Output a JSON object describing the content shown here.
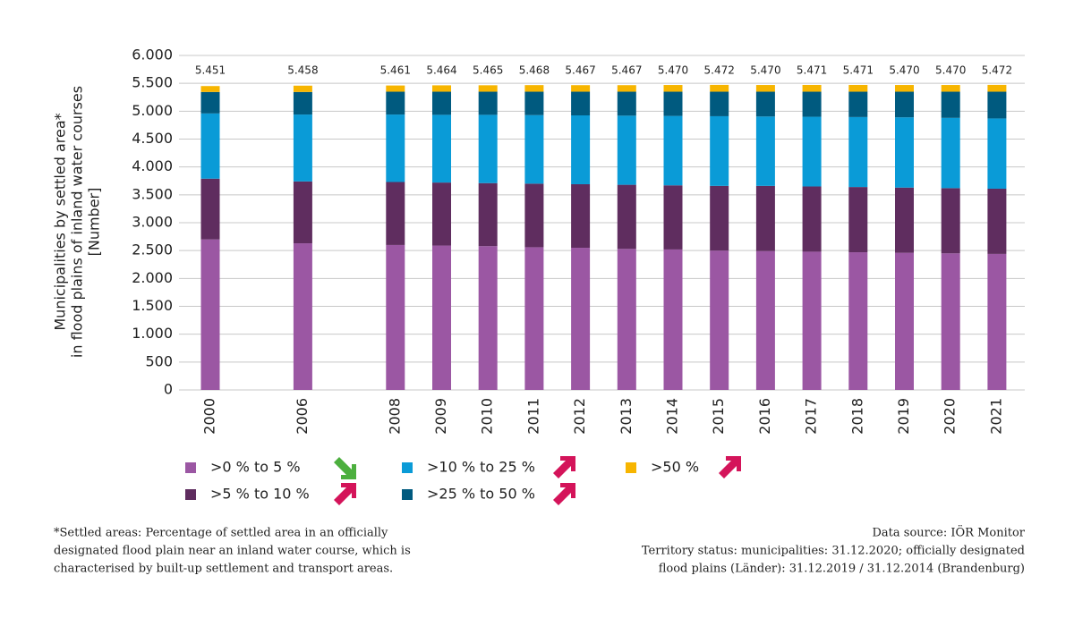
{
  "chart_data": {
    "type": "stacked_bar",
    "ylabel": [
      "Municipalities by settled area*",
      "in flood plains of inland water courses",
      "[Number]"
    ],
    "categories": [
      "2000",
      null,
      "2006",
      null,
      "2008",
      "2009",
      "2010",
      "2011",
      "2012",
      "2013",
      "2014",
      "2015",
      "2016",
      "2017",
      "2018",
      "2019",
      "2020",
      "2021"
    ],
    "series": [
      {
        "name": ">0 % to 5 %",
        "color": "#9b57a3",
        "trend": "down",
        "values": [
          2700,
          null,
          2630,
          null,
          2600,
          2590,
          2580,
          2560,
          2550,
          2530,
          2520,
          2500,
          2490,
          2480,
          2470,
          2460,
          2450,
          2440
        ]
      },
      {
        "name": ">5 % to 10 %",
        "color": "#5f2d5f",
        "trend": "up",
        "values": [
          1090,
          null,
          1110,
          null,
          1130,
          1130,
          1130,
          1140,
          1140,
          1150,
          1150,
          1160,
          1170,
          1170,
          1170,
          1170,
          1170,
          1170
        ]
      },
      {
        "name": ">10 % to 25 %",
        "color": "#0a9bd7",
        "trend": "up",
        "values": [
          1170,
          null,
          1200,
          null,
          1210,
          1215,
          1225,
          1230,
          1235,
          1240,
          1245,
          1250,
          1245,
          1250,
          1255,
          1260,
          1260,
          1260
        ]
      },
      {
        "name": ">25 % to 50 %",
        "color": "#005a7f",
        "trend": "up",
        "values": [
          385,
          null,
          405,
          null,
          410,
          415,
          415,
          420,
          425,
          430,
          435,
          440,
          445,
          450,
          455,
          460,
          470,
          480
        ]
      },
      {
        "name": ">50 %",
        "color": "#f7b500",
        "trend": "up",
        "values": [
          106,
          null,
          113,
          null,
          111,
          114,
          115,
          118,
          117,
          117,
          120,
          122,
          120,
          121,
          121,
          120,
          120,
          122
        ]
      }
    ],
    "totals": {
      "values": [
        5451,
        null,
        5458,
        null,
        5461,
        5464,
        5465,
        5468,
        5467,
        5467,
        5470,
        5472,
        5470,
        5471,
        5471,
        5470,
        5470,
        5472
      ],
      "value_labels": [
        "5.451",
        null,
        "5.458",
        null,
        "5.461",
        "5.464",
        "5.465",
        "5.468",
        "5.467",
        "5.467",
        "5.470",
        "5.472",
        "5.470",
        "5.471",
        "5.471",
        "5.470",
        "5.470",
        "5.472"
      ]
    },
    "ylim": [
      0,
      6000
    ],
    "yticks": [
      0,
      500,
      {
        "value": 1000,
        "label": "1.000"
      },
      {
        "value": 1500,
        "label": "1.500"
      },
      {
        "value": 2000,
        "label": "2.000"
      },
      {
        "value": 2500,
        "label": "2.500"
      },
      {
        "value": 3000,
        "label": "3.000"
      },
      {
        "value": 3500,
        "label": "3.500"
      },
      {
        "value": 4000,
        "label": "4.000"
      },
      {
        "value": 4500,
        "label": "4.500"
      },
      {
        "value": 5000,
        "label": "5.000"
      },
      {
        "value": 5500,
        "label": "5.500"
      },
      {
        "value": 6000,
        "label": "6.000"
      }
    ],
    "grid": true,
    "footnote": [
      "*Settled areas: Percentage of settled area in an officially",
      "designated flood plain near an inland water course, which is",
      "characterised by built-up settlement and transport areas."
    ],
    "source": [
      "Data source: IÖR Monitor",
      "Territory status: municipalities: 31.12.2020; officially designated",
      "flood plains (Länder): 31.12.2019 / 31.12.2014  (Brandenburg)"
    ]
  }
}
